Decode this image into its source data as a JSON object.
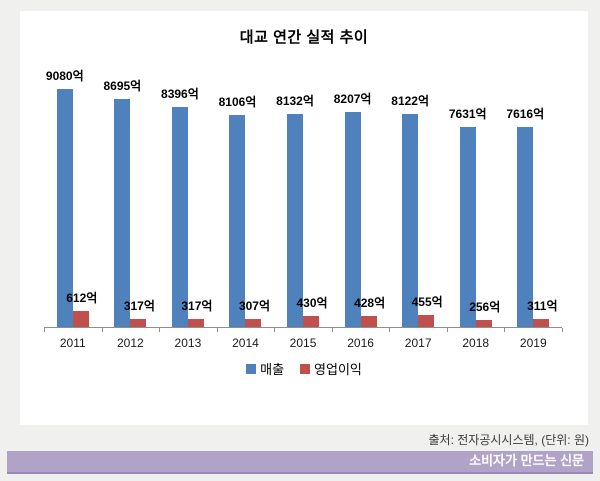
{
  "page": {
    "background": "#f0f0ee"
  },
  "chart_data": {
    "type": "bar",
    "title": "대교 연간 실적 추이",
    "categories": [
      "2011",
      "2012",
      "2013",
      "2014",
      "2015",
      "2016",
      "2017",
      "2018",
      "2019"
    ],
    "series": [
      {
        "name": "매출",
        "color": "#4f81bd",
        "values": [
          9080,
          8695,
          8396,
          8106,
          8132,
          8207,
          8122,
          7631,
          7616
        ],
        "labels": [
          "9080억",
          "8695억",
          "8396억",
          "8106억",
          "8132억",
          "8207억",
          "8122억",
          "7631억",
          "7616억"
        ]
      },
      {
        "name": "영업이익",
        "color": "#c0504d",
        "values": [
          612,
          317,
          317,
          307,
          430,
          428,
          455,
          256,
          311
        ],
        "labels": [
          "612억",
          "317억",
          "317억",
          "307억",
          "430억",
          "428억",
          "455억",
          "256억",
          "311억"
        ]
      }
    ],
    "unit": "억",
    "ylim": [
      0,
      9080
    ],
    "grid": false,
    "value_labels": true,
    "legend_position": "bottom",
    "axis_color": "#8e8e8e"
  },
  "footer": {
    "source": "출처: 전자공시시스템, (단위: 원)",
    "banner": "소비자가 만드는 신문",
    "banner_color": "#b1a2c8"
  }
}
